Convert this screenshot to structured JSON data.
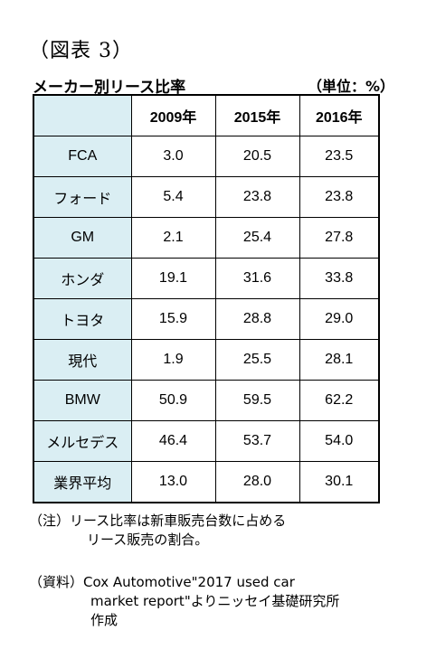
{
  "figure_label": "（図表 3）",
  "table_title": "メーカー別リース比率",
  "unit_label": "（単位：%）",
  "table": {
    "columns": [
      "",
      "2009年",
      "2015年",
      "2016年"
    ],
    "rows": [
      {
        "maker": "FCA",
        "values": [
          "3.0",
          "20.5",
          "23.5"
        ]
      },
      {
        "maker": "フォード",
        "values": [
          "5.4",
          "23.8",
          "23.8"
        ]
      },
      {
        "maker": "GM",
        "values": [
          "2.1",
          "25.4",
          "27.8"
        ]
      },
      {
        "maker": "ホンダ",
        "values": [
          "19.1",
          "31.6",
          "33.8"
        ]
      },
      {
        "maker": "トヨタ",
        "values": [
          "15.9",
          "28.8",
          "29.0"
        ]
      },
      {
        "maker": "現代",
        "values": [
          "1.9",
          "25.5",
          "28.1"
        ]
      },
      {
        "maker": "BMW",
        "values": [
          "50.9",
          "59.5",
          "62.2"
        ]
      },
      {
        "maker": "メルセデス",
        "values": [
          "46.4",
          "53.7",
          "54.0"
        ]
      },
      {
        "maker": "業界平均",
        "values": [
          "13.0",
          "28.0",
          "30.1"
        ]
      }
    ]
  },
  "notes": {
    "note_tag": "（注）",
    "note_line1": "リース比率は新車販売台数に占める",
    "note_line2": "リース販売の割合。",
    "source_tag": "（資料）",
    "source_line1": "Cox  Automotive\"2017 used car",
    "source_line2": "market report\"よりニッセイ基礎研究所",
    "source_line3": "作成"
  },
  "colors": {
    "header_fill": "#daeef3",
    "maker_fill": "#daeef3",
    "border": "#000000"
  }
}
